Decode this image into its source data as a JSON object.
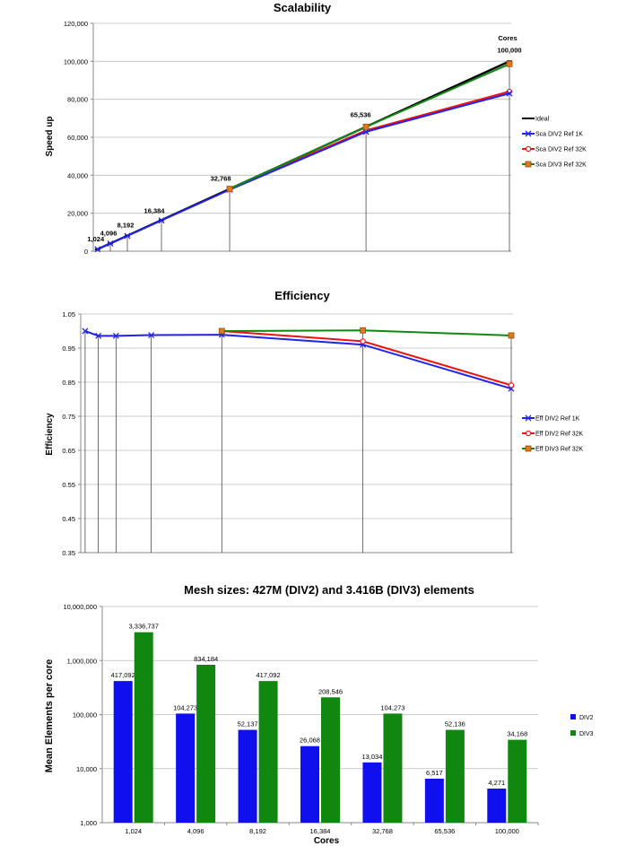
{
  "chart_data": [
    {
      "type": "line",
      "title": "Scalability",
      "xlabel": "",
      "ylabel": "Speed up",
      "ylim": [
        0,
        120000
      ],
      "yticks": [
        "0",
        "20,000",
        "40,000",
        "60,000",
        "80,000",
        "100,000",
        "120,000"
      ],
      "corner_label": "Cores",
      "point_labels": [
        "1,024",
        "4,096",
        "8,192",
        "16,384",
        "32,768",
        "65,536",
        "100,000"
      ],
      "x": [
        1024,
        4096,
        8192,
        16384,
        32768,
        65536,
        100000
      ],
      "series": [
        {
          "name": "Ideal",
          "color": "#000000",
          "x": [
            1024,
            4096,
            8192,
            16384,
            32768,
            65536,
            100000
          ],
          "values": [
            1024,
            4096,
            8192,
            16384,
            32768,
            65536,
            100000
          ]
        },
        {
          "name": "Sca DIV2 Ref 1K",
          "color": "#2222ee",
          "x": [
            1024,
            4096,
            8192,
            16384,
            32768,
            65536,
            100000
          ],
          "values": [
            1024,
            4040,
            8080,
            16200,
            32400,
            62900,
            83100
          ]
        },
        {
          "name": "Sca DIV2 Ref 32K",
          "color": "#ee1111",
          "x": [
            32768,
            65536,
            100000
          ],
          "values": [
            32768,
            63600,
            84100
          ]
        },
        {
          "name": "Sca DIV3 Ref 32K",
          "color": "#118811",
          "x": [
            32768,
            65536,
            100000
          ],
          "values": [
            32768,
            65500,
            98600
          ]
        }
      ]
    },
    {
      "type": "line",
      "title": "Efficiency",
      "xlabel": "",
      "ylabel": "Efficiency",
      "ylim": [
        0.35,
        1.05
      ],
      "yticks": [
        "0.35",
        "0.45",
        "0.55",
        "0.65",
        "0.75",
        "0.85",
        "0.95",
        "1.05"
      ],
      "series": [
        {
          "name": "Eff DIV2 Ref 1K",
          "color": "#2222ee",
          "x": [
            1024,
            4096,
            8192,
            16384,
            32768,
            65536,
            100000
          ],
          "values": [
            1.0,
            0.986,
            0.986,
            0.988,
            0.989,
            0.96,
            0.831
          ]
        },
        {
          "name": "Eff DIV2 Ref 32K",
          "color": "#ee1111",
          "x": [
            32768,
            65536,
            100000
          ],
          "values": [
            1.0,
            0.97,
            0.841
          ]
        },
        {
          "name": "Eff DIV3 Ref 32K",
          "color": "#118811",
          "x": [
            32768,
            65536,
            100000
          ],
          "values": [
            1.0,
            1.002,
            0.987
          ]
        }
      ]
    },
    {
      "type": "bar",
      "title": "Mesh sizes: 427M (DIV2) and 3.416B (DIV3) elements",
      "xlabel": "Cores",
      "ylabel": "Mean Elements per core",
      "log_scale": true,
      "ylim": [
        1000,
        10000000
      ],
      "yticks": [
        "1,000",
        "10,000",
        "100,000",
        "1,000,000",
        "10,000,000"
      ],
      "categories": [
        "1,024",
        "4,096",
        "8,192",
        "16,384",
        "32,768",
        "65,536",
        "100,000"
      ],
      "series": [
        {
          "name": "DIV2",
          "color": "#1010ee",
          "values": [
            417092,
            104273,
            52137,
            26068,
            13034,
            6517,
            4271
          ],
          "labels": [
            "417,092",
            "104,273",
            "52,137",
            "26,068",
            "13,034",
            "6,517",
            "4,271"
          ]
        },
        {
          "name": "DIV3",
          "color": "#108810",
          "values": [
            3336737,
            834184,
            417092,
            208546,
            104273,
            52136,
            34168
          ],
          "labels": [
            "3,336,737",
            "834,184",
            "417,092",
            "208,546",
            "104,273",
            "52,136",
            "34,168"
          ]
        }
      ]
    }
  ]
}
